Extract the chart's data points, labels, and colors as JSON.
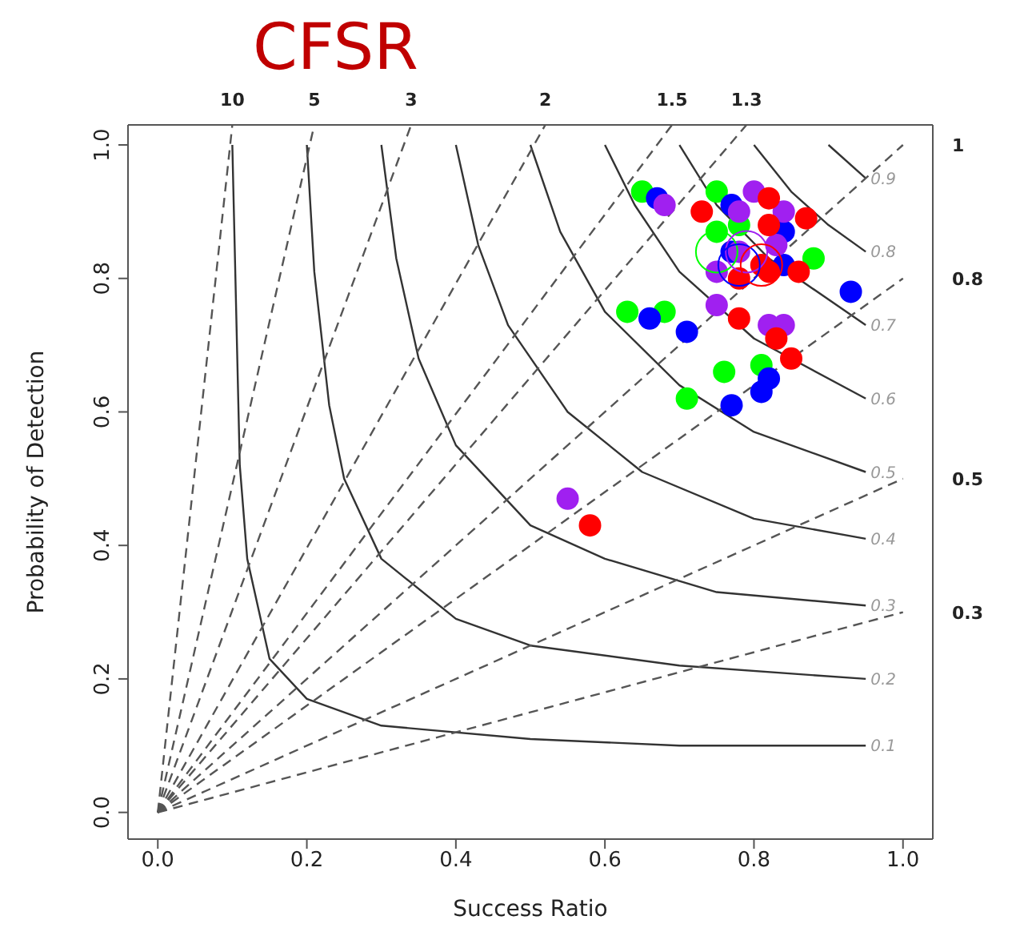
{
  "chart_data": {
    "type": "bubble",
    "title": "CFSR",
    "xlabel": "Success Ratio",
    "ylabel": "Probability of Detection",
    "xlim": [
      -0.04,
      1.04
    ],
    "ylim": [
      -0.04,
      1.03
    ],
    "xticks": [
      {
        "value": 0,
        "label": "0.0"
      },
      {
        "value": 0.2,
        "label": "0.2"
      },
      {
        "value": 0.4,
        "label": "0.4"
      },
      {
        "value": 0.6,
        "label": "0.6"
      },
      {
        "value": 0.8,
        "label": "0.8"
      },
      {
        "value": 1,
        "label": "1.0"
      }
    ],
    "yticks": [
      {
        "value": 0,
        "label": "0.0"
      },
      {
        "value": 0.2,
        "label": "0.2"
      },
      {
        "value": 0.4,
        "label": "0.4"
      },
      {
        "value": 0.6,
        "label": "0.6"
      },
      {
        "value": 0.8,
        "label": "0.8"
      },
      {
        "value": 1,
        "label": "1.0"
      }
    ],
    "y2lim": [
      -0.04,
      1.03
    ],
    "y2ticks": [
      1,
      0.8,
      0.5,
      0.3
    ],
    "series": [
      {
        "type": "line",
        "color": "#333333",
        "line_style": "solid",
        "marker": "none",
        "x": [
          0.1,
          0.11,
          0.12,
          0.15,
          0.2,
          0.3,
          0.5,
          0.7,
          0.95
        ],
        "values": [
          1,
          0.52,
          0.38,
          0.23,
          0.17,
          0.13,
          0.11,
          0.1,
          0.1
        ]
      },
      {
        "type": "line",
        "color": "#333333",
        "line_style": "solid",
        "marker": "none",
        "x": [
          0.2,
          0.21,
          0.23,
          0.25,
          0.3,
          0.4,
          0.5,
          0.7,
          0.95
        ],
        "values": [
          1,
          0.81,
          0.61,
          0.5,
          0.38,
          0.29,
          0.25,
          0.22,
          0.2
        ]
      },
      {
        "type": "line",
        "color": "#333333",
        "line_style": "solid",
        "marker": "none",
        "x": [
          0.3,
          0.32,
          0.35,
          0.4,
          0.5,
          0.6,
          0.75,
          0.95
        ],
        "values": [
          1,
          0.83,
          0.68,
          0.55,
          0.43,
          0.38,
          0.33,
          0.31
        ]
      },
      {
        "type": "line",
        "color": "#333333",
        "line_style": "solid",
        "marker": "none",
        "x": [
          0.4,
          0.43,
          0.47,
          0.55,
          0.65,
          0.8,
          0.95
        ],
        "values": [
          1,
          0.85,
          0.73,
          0.6,
          0.51,
          0.44,
          0.41
        ]
      },
      {
        "type": "line",
        "color": "#333333",
        "line_style": "solid",
        "marker": "none",
        "x": [
          0.5,
          0.54,
          0.6,
          0.7,
          0.8,
          0.95
        ],
        "values": [
          1,
          0.87,
          0.75,
          0.64,
          0.57,
          0.51
        ]
      },
      {
        "type": "line",
        "color": "#333333",
        "line_style": "solid",
        "marker": "none",
        "x": [
          0.6,
          0.64,
          0.7,
          0.8,
          0.95
        ],
        "values": [
          1,
          0.91,
          0.81,
          0.71,
          0.62
        ]
      },
      {
        "type": "line",
        "color": "#333333",
        "line_style": "solid",
        "marker": "none",
        "x": [
          0.7,
          0.75,
          0.82,
          0.95
        ],
        "values": [
          1,
          0.91,
          0.83,
          0.73
        ]
      },
      {
        "type": "line",
        "color": "#333333",
        "line_style": "solid",
        "marker": "none",
        "x": [
          0.8,
          0.85,
          0.9,
          0.95
        ],
        "values": [
          1,
          0.93,
          0.88,
          0.84
        ]
      },
      {
        "type": "line",
        "color": "#333333",
        "line_style": "solid",
        "marker": "none",
        "x": [
          0.9,
          0.95
        ],
        "values": [
          1,
          0.95
        ]
      },
      {
        "type": "line",
        "color": "#555555",
        "line_style": "dashed",
        "marker": "none",
        "x": [
          0,
          0.1
        ],
        "values": [
          0,
          1.03
        ]
      },
      {
        "type": "line",
        "color": "#555555",
        "line_style": "dashed",
        "marker": "none",
        "x": [
          0,
          0.21
        ],
        "values": [
          0,
          1.03
        ]
      },
      {
        "type": "line",
        "color": "#555555",
        "line_style": "dashed",
        "marker": "none",
        "x": [
          0,
          0.34
        ],
        "values": [
          0,
          1.03
        ]
      },
      {
        "type": "line",
        "color": "#555555",
        "line_style": "dashed",
        "marker": "none",
        "x": [
          0,
          0.52
        ],
        "values": [
          0,
          1.03
        ]
      },
      {
        "type": "line",
        "color": "#555555",
        "line_style": "dashed",
        "marker": "none",
        "x": [
          0,
          0.69
        ],
        "values": [
          0,
          1.03
        ]
      },
      {
        "type": "line",
        "color": "#555555",
        "line_style": "dashed",
        "marker": "none",
        "x": [
          0,
          0.79
        ],
        "values": [
          0,
          1.03
        ]
      },
      {
        "type": "line",
        "color": "#555555",
        "line_style": "dashed",
        "marker": "none",
        "x": [
          0,
          1
        ],
        "values": [
          0,
          1
        ]
      },
      {
        "type": "line",
        "color": "#555555",
        "line_style": "dashed",
        "marker": "none",
        "x": [
          0,
          1
        ],
        "values": [
          0,
          0.8
        ]
      },
      {
        "type": "line",
        "color": "#555555",
        "line_style": "dashed",
        "marker": "none",
        "x": [
          0,
          1
        ],
        "values": [
          0,
          0.5
        ]
      },
      {
        "type": "line",
        "color": "#555555",
        "line_style": "dashed",
        "marker": "none",
        "x": [
          0,
          1
        ],
        "values": [
          0,
          0.3
        ]
      },
      {
        "color": "#00ff00",
        "x": [
          0.65,
          0.75,
          0.78,
          0.75,
          0.88,
          0.63,
          0.68,
          0.76,
          0.81,
          0.71
        ],
        "values": [
          0.93,
          0.93,
          0.88,
          0.87,
          0.83,
          0.75,
          0.75,
          0.66,
          0.67,
          0.62
        ],
        "sizes": [
          0.25,
          0.25,
          0.25,
          0.25,
          0.25,
          0.25,
          0.25,
          0.25,
          0.25,
          0.25
        ]
      },
      {
        "color": "#0000ff",
        "x": [
          0.67,
          0.77,
          0.84,
          0.77,
          0.84,
          0.93,
          0.66,
          0.71,
          0.82,
          0.81,
          0.77
        ],
        "values": [
          0.92,
          0.91,
          0.87,
          0.84,
          0.82,
          0.78,
          0.74,
          0.72,
          0.65,
          0.63,
          0.61
        ],
        "sizes": [
          0.25,
          0.25,
          0.25,
          0.25,
          0.25,
          0.25,
          0.25,
          0.25,
          0.25,
          0.25,
          0.25
        ]
      },
      {
        "color": "#a020f0",
        "x": [
          0.68,
          0.8,
          0.78,
          0.84,
          0.78,
          0.83,
          0.75,
          0.75,
          0.82,
          0.84,
          0.55
        ],
        "values": [
          0.91,
          0.93,
          0.9,
          0.9,
          0.84,
          0.85,
          0.81,
          0.76,
          0.73,
          0.73,
          0.47
        ],
        "sizes": [
          0.25,
          0.25,
          0.25,
          0.25,
          0.25,
          0.25,
          0.25,
          0.25,
          0.25,
          0.25,
          0.25
        ]
      },
      {
        "color": "#ff0000",
        "x": [
          0.73,
          0.82,
          0.82,
          0.87,
          0.78,
          0.81,
          0.82,
          0.86,
          0.78,
          0.83,
          0.85,
          0.58
        ],
        "values": [
          0.9,
          0.92,
          0.88,
          0.89,
          0.8,
          0.82,
          0.81,
          0.81,
          0.74,
          0.71,
          0.68,
          0.43
        ],
        "sizes": [
          0.25,
          0.25,
          0.25,
          0.25,
          0.25,
          0.25,
          0.25,
          0.25,
          0.25,
          0.25,
          0.25,
          0.25
        ]
      },
      {
        "type": "bubble",
        "color": "#00ff00",
        "x": [
          0.75
        ],
        "values": [
          0.84
        ],
        "sizes": [
          1
        ]
      },
      {
        "type": "bubble",
        "color": "#a020f0",
        "x": [
          0.79
        ],
        "values": [
          0.84
        ],
        "sizes": [
          1
        ]
      },
      {
        "type": "bubble",
        "color": "#0000ff",
        "x": [
          0.78
        ],
        "values": [
          0.82
        ],
        "sizes": [
          1
        ]
      },
      {
        "type": "bubble",
        "color": "#ff0000",
        "x": [
          0.81
        ],
        "values": [
          0.82
        ],
        "sizes": [
          1
        ]
      }
    ],
    "annotations": [
      {
        "text": "0.1",
        "x": 0.95,
        "y": 0.1
      },
      {
        "text": "0.2",
        "x": 0.95,
        "y": 0.2
      },
      {
        "text": "0.3",
        "x": 0.95,
        "y": 0.31
      },
      {
        "text": "0.4",
        "x": 0.95,
        "y": 0.41
      },
      {
        "text": "0.5",
        "x": 0.95,
        "y": 0.51
      },
      {
        "text": "0.6",
        "x": 0.95,
        "y": 0.62
      },
      {
        "text": "0.7",
        "x": 0.95,
        "y": 0.73
      },
      {
        "text": "0.8",
        "x": 0.95,
        "y": 0.84
      },
      {
        "text": "0.9",
        "x": 0.95,
        "y": 0.95
      },
      {
        "text": "10",
        "x": 0.1,
        "y": 1.03
      },
      {
        "text": "5",
        "x": 0.21,
        "y": 1.03
      },
      {
        "text": "3",
        "x": 0.34,
        "y": 1.03
      },
      {
        "text": "2",
        "x": 0.52,
        "y": 1.03
      },
      {
        "text": "1.5",
        "x": 0.69,
        "y": 1.03
      },
      {
        "text": "1.3",
        "x": 0.79,
        "y": 1.03
      }
    ]
  }
}
